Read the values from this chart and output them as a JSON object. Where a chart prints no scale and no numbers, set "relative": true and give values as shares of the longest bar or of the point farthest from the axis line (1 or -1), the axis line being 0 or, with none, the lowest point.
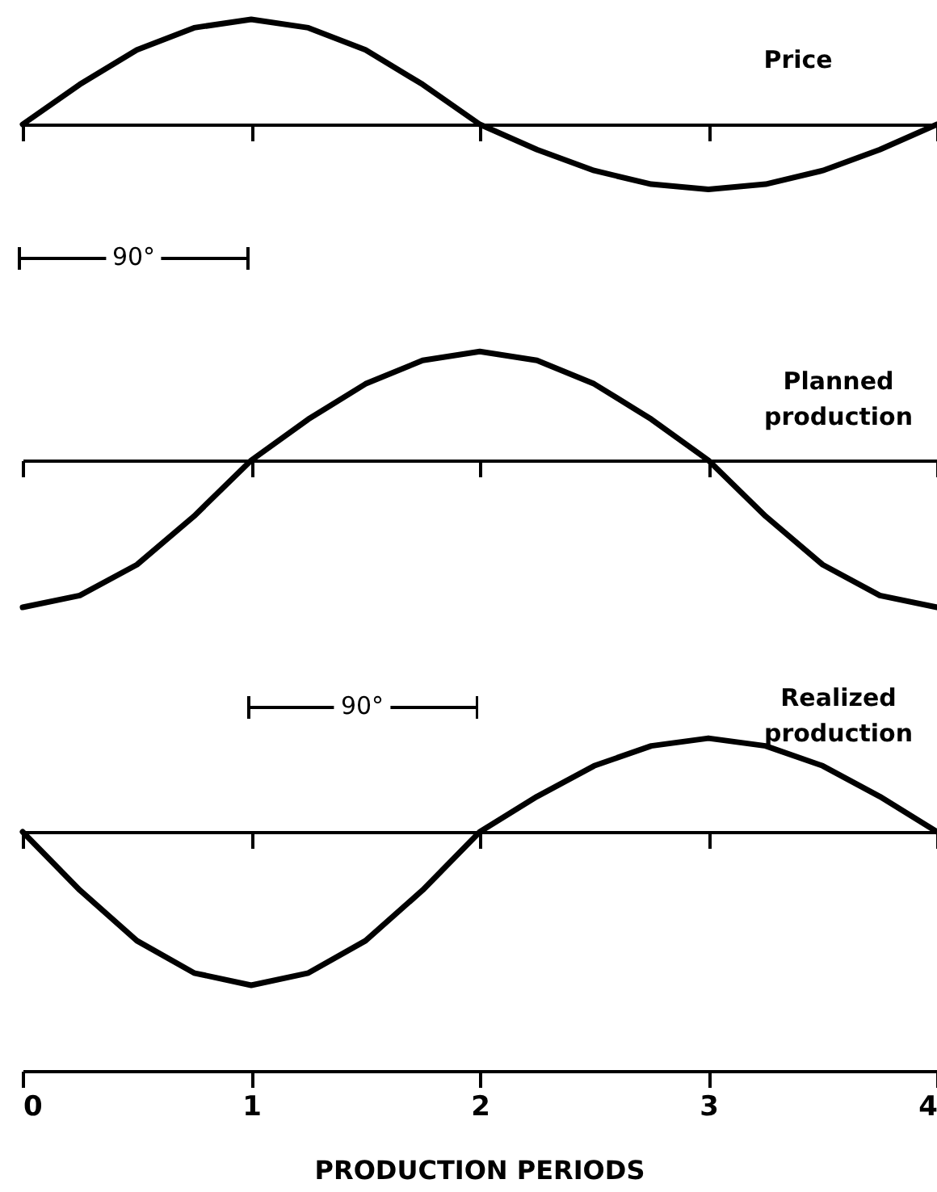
{
  "chart_data": [
    {
      "type": "line",
      "relative": true,
      "xlim": [
        0,
        4
      ],
      "xticks": [
        0,
        1,
        2,
        3,
        4
      ],
      "tick_labels": false,
      "annotations": [
        "90°"
      ],
      "x": [
        0,
        0.25,
        0.5,
        0.75,
        1,
        1.25,
        1.5,
        1.75,
        2,
        2.25,
        2.5,
        2.75,
        3,
        3.25,
        3.5,
        3.75,
        4
      ],
      "series": [
        {
          "name": "Price",
          "color": "#000000",
          "values": [
            0,
            0.38,
            0.71,
            0.92,
            1,
            0.92,
            0.71,
            0.38,
            0,
            -0.24,
            -0.44,
            -0.57,
            -0.62,
            -0.57,
            -0.44,
            -0.24,
            0
          ]
        }
      ]
    },
    {
      "type": "line",
      "relative": true,
      "xlim": [
        0,
        4
      ],
      "xticks": [
        0,
        1,
        2,
        3,
        4
      ],
      "tick_labels": false,
      "x": [
        0,
        0.25,
        0.5,
        0.75,
        1,
        1.25,
        1.5,
        1.75,
        2,
        2.25,
        2.5,
        2.75,
        3,
        3.25,
        3.5,
        3.75,
        4
      ],
      "series": [
        {
          "name": "Planned production",
          "color": "#000000",
          "values": [
            -1,
            -0.92,
            -0.71,
            -0.38,
            0,
            0.28,
            0.52,
            0.68,
            0.74,
            0.68,
            0.52,
            0.28,
            0,
            -0.38,
            -0.71,
            -0.92,
            -1
          ]
        }
      ]
    },
    {
      "type": "line",
      "relative": true,
      "xlim": [
        0,
        4
      ],
      "xticks": [
        0,
        1,
        2,
        3,
        4
      ],
      "tick_labels": "x",
      "xlabel": "PRODUCTION PERIODS",
      "annotations": [
        "90°"
      ],
      "x": [
        0,
        0.25,
        0.5,
        0.75,
        1,
        1.25,
        1.5,
        1.75,
        2,
        2.25,
        2.5,
        2.75,
        3,
        3.25,
        3.5,
        3.75,
        4
      ],
      "series": [
        {
          "name": "Realized production",
          "color": "#000000",
          "values": [
            0,
            -0.38,
            -0.71,
            -0.92,
            -1,
            -0.92,
            -0.71,
            -0.38,
            0,
            0.23,
            0.43,
            0.56,
            0.61,
            0.56,
            0.43,
            0.23,
            0
          ]
        }
      ]
    }
  ]
}
